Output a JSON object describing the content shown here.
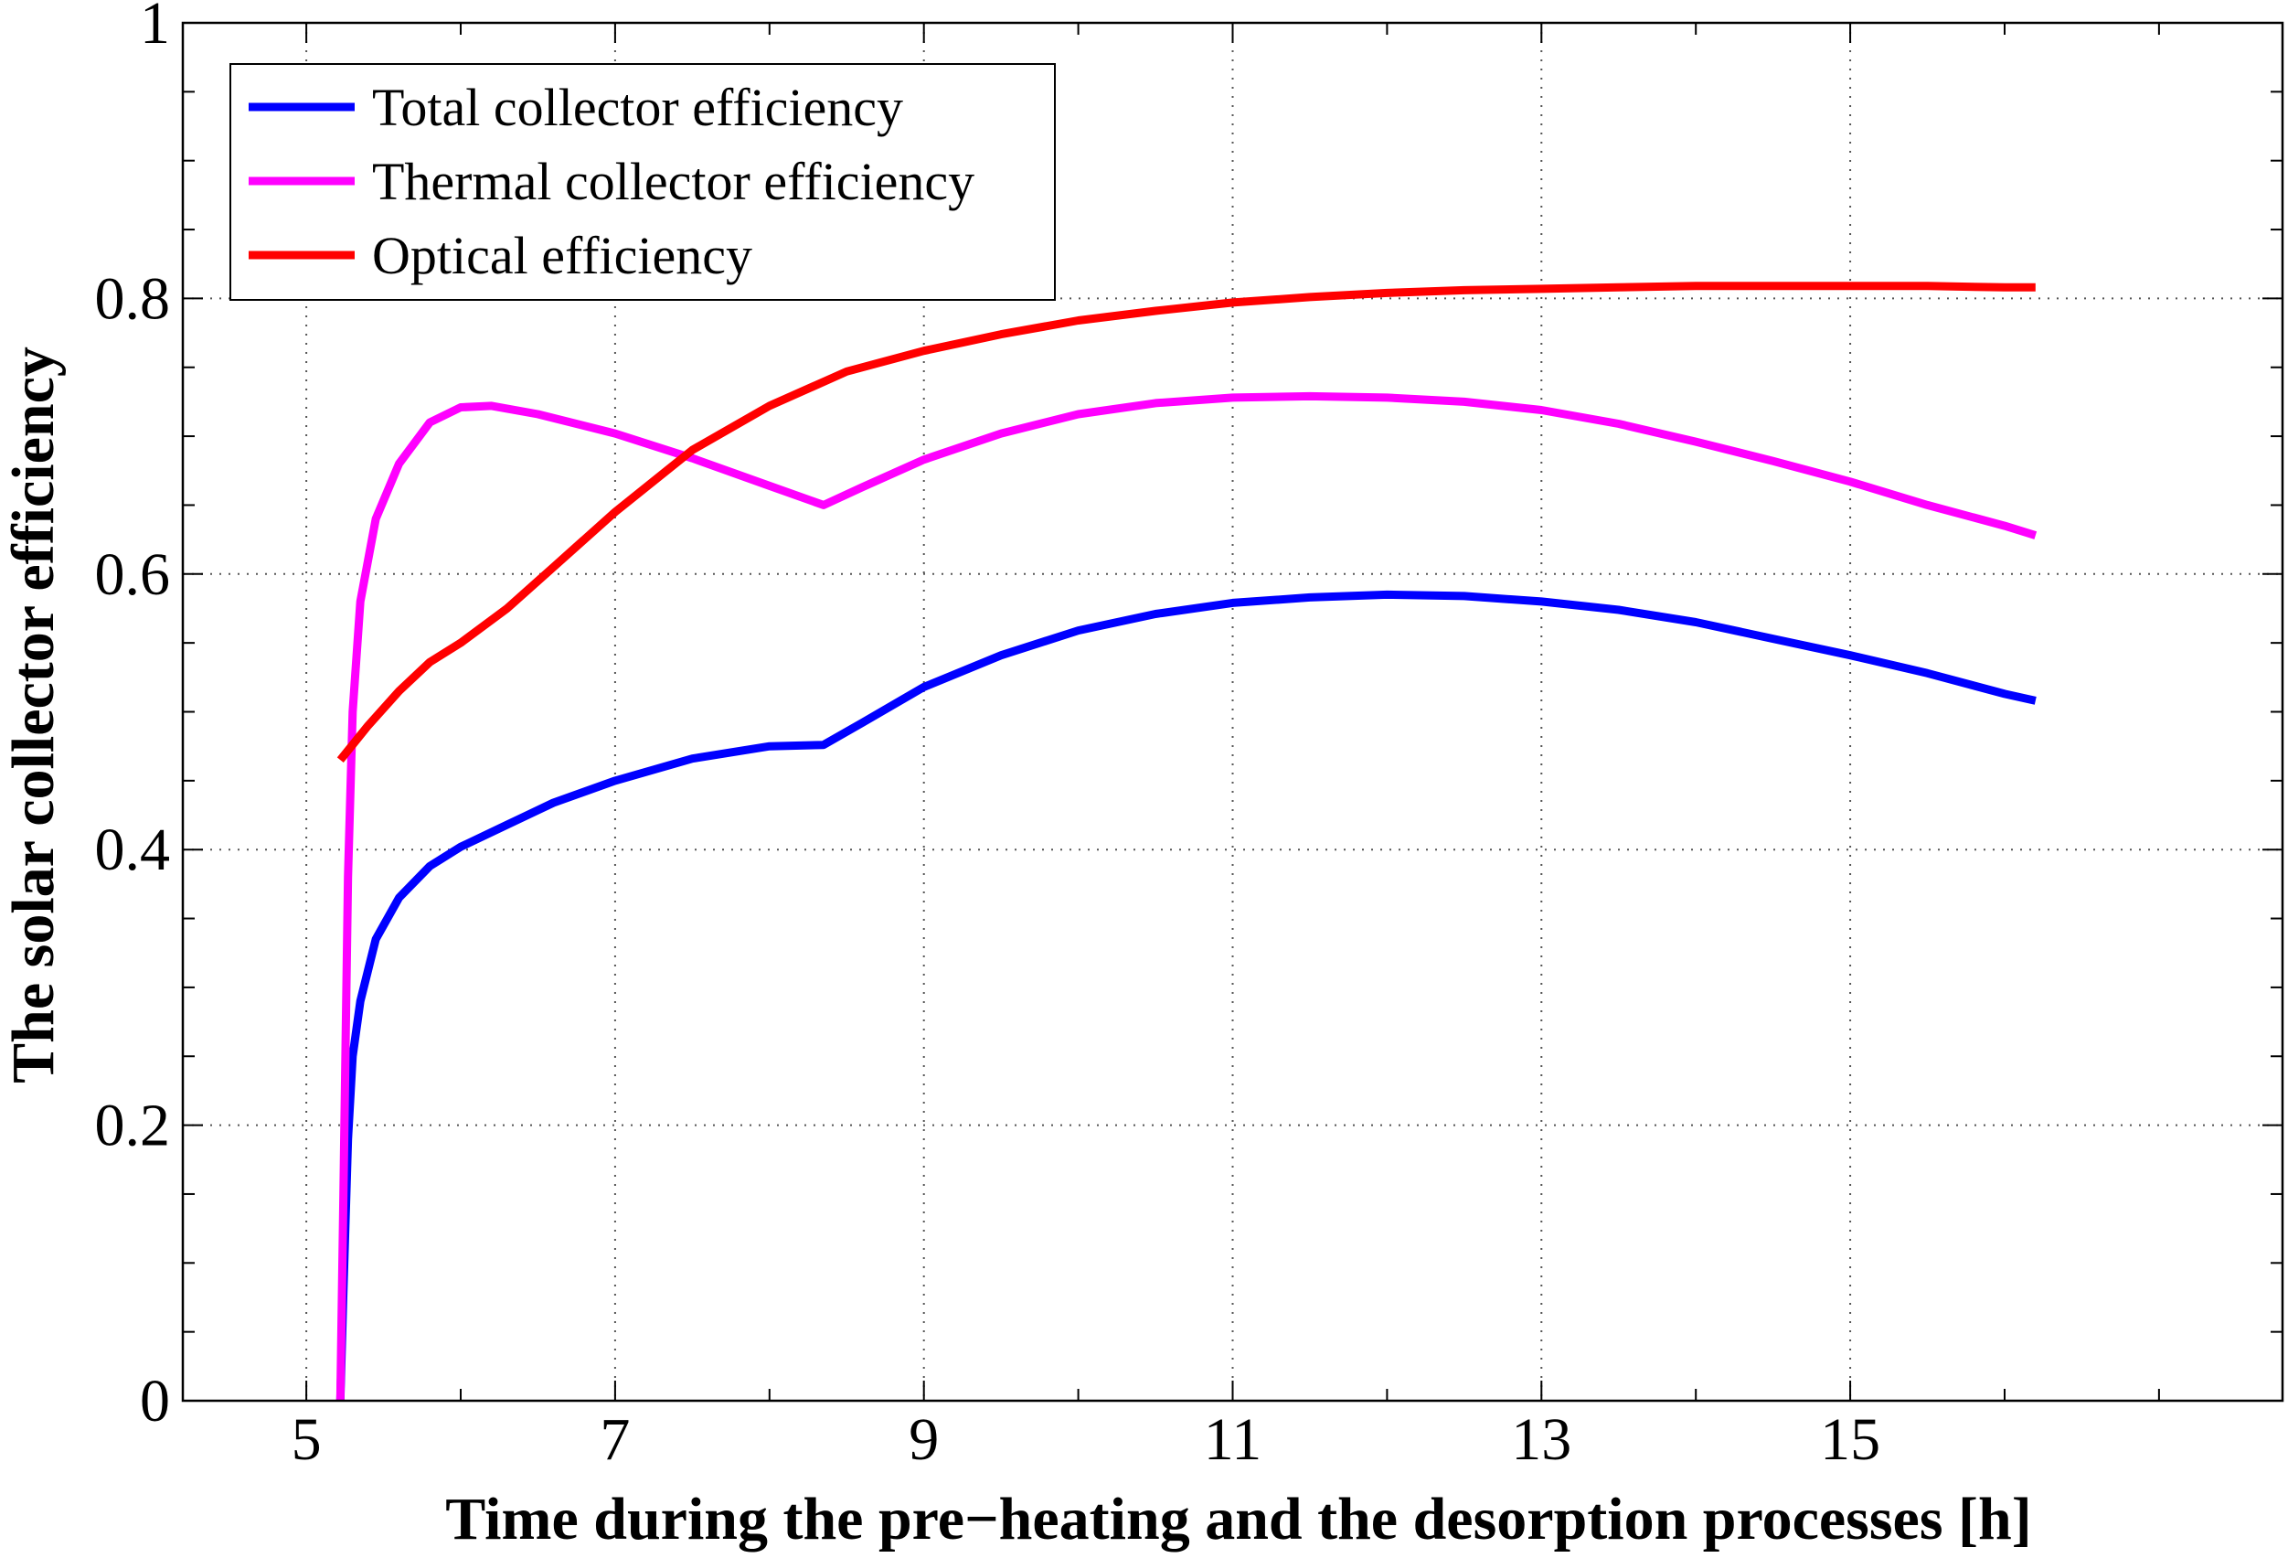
{
  "chart_data": {
    "type": "line",
    "title": "",
    "xlabel": "Time during the pre−heating and the desorption processes  [h]",
    "ylabel": "The solar collector efficiency",
    "xlim": [
      4.2,
      17.8
    ],
    "ylim": [
      0,
      1
    ],
    "xticks": [
      5,
      7,
      9,
      11,
      13,
      15
    ],
    "xtick_labels": [
      "5",
      "7",
      "9",
      "11",
      "13",
      "15"
    ],
    "yticks": [
      0,
      0.2,
      0.4,
      0.6,
      0.8,
      1
    ],
    "ytick_labels": [
      "0",
      "0.2",
      "0.4",
      "0.6",
      "0.8",
      "1"
    ],
    "grid": true,
    "legend_position": "top-left",
    "series": [
      {
        "name": "Total collector efficiency",
        "color": "#0000ff",
        "x": [
          5.22,
          5.24,
          5.27,
          5.3,
          5.35,
          5.45,
          5.6,
          5.8,
          6.0,
          6.3,
          6.6,
          7.0,
          7.5,
          8.0,
          8.35,
          8.6,
          9.0,
          9.5,
          10.0,
          10.5,
          11.0,
          11.5,
          12.0,
          12.5,
          13.0,
          13.5,
          14.0,
          14.5,
          15.0,
          15.5,
          16.0,
          16.2
        ],
        "y": [
          0.0,
          0.08,
          0.19,
          0.25,
          0.29,
          0.335,
          0.365,
          0.388,
          0.402,
          0.418,
          0.434,
          0.45,
          0.466,
          0.475,
          0.476,
          0.492,
          0.518,
          0.541,
          0.559,
          0.571,
          0.579,
          0.583,
          0.585,
          0.584,
          0.58,
          0.574,
          0.565,
          0.553,
          0.541,
          0.528,
          0.513,
          0.508
        ]
      },
      {
        "name": "Thermal collector efficiency",
        "color": "#ff00ff",
        "x": [
          5.22,
          5.24,
          5.27,
          5.3,
          5.35,
          5.45,
          5.6,
          5.8,
          6.0,
          6.2,
          6.5,
          7.0,
          7.5,
          8.0,
          8.35,
          8.6,
          9.0,
          9.5,
          10.0,
          10.5,
          11.0,
          11.5,
          12.0,
          12.5,
          13.0,
          13.5,
          14.0,
          14.5,
          15.0,
          15.5,
          16.0,
          16.2
        ],
        "y": [
          0.0,
          0.15,
          0.38,
          0.5,
          0.58,
          0.64,
          0.68,
          0.71,
          0.721,
          0.722,
          0.716,
          0.702,
          0.684,
          0.664,
          0.65,
          0.663,
          0.683,
          0.702,
          0.716,
          0.724,
          0.728,
          0.729,
          0.728,
          0.725,
          0.719,
          0.709,
          0.696,
          0.682,
          0.667,
          0.65,
          0.635,
          0.628
        ]
      },
      {
        "name": "Optical efficiency",
        "color": "#ff0000",
        "x": [
          5.22,
          5.4,
          5.6,
          5.8,
          6.0,
          6.3,
          6.6,
          7.0,
          7.5,
          8.0,
          8.5,
          9.0,
          9.5,
          10.0,
          10.5,
          11.0,
          11.5,
          12.0,
          12.5,
          13.0,
          13.5,
          14.0,
          14.5,
          15.0,
          15.5,
          16.0,
          16.2
        ],
        "y": [
          0.465,
          0.49,
          0.515,
          0.536,
          0.55,
          0.575,
          0.605,
          0.645,
          0.69,
          0.722,
          0.747,
          0.762,
          0.774,
          0.784,
          0.791,
          0.797,
          0.801,
          0.804,
          0.806,
          0.807,
          0.808,
          0.809,
          0.809,
          0.809,
          0.809,
          0.808,
          0.808
        ]
      }
    ]
  }
}
